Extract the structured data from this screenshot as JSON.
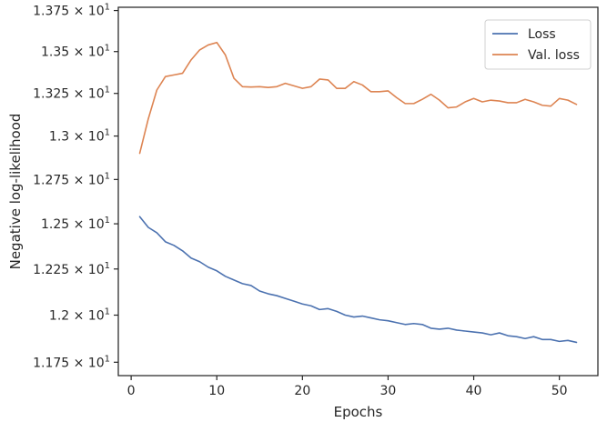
{
  "chart_data": {
    "type": "line",
    "title": "",
    "xlabel": "Epochs",
    "ylabel": "Negative log-likelihood",
    "yscale": "log",
    "xlim": [
      -1.5,
      54.5
    ],
    "ylim": [
      11.68,
      13.77
    ],
    "grid": false,
    "legend_position": "top-right",
    "x_ticks": [
      {
        "value": 0,
        "label": "0"
      },
      {
        "value": 10,
        "label": "10"
      },
      {
        "value": 20,
        "label": "20"
      },
      {
        "value": 30,
        "label": "30"
      },
      {
        "value": 40,
        "label": "40"
      },
      {
        "value": 50,
        "label": "50"
      }
    ],
    "y_ticks": [
      {
        "value": 11.75,
        "mantissa": "1.175"
      },
      {
        "value": 12.0,
        "mantissa": "1.2"
      },
      {
        "value": 12.25,
        "mantissa": "1.225"
      },
      {
        "value": 12.5,
        "mantissa": "1.25"
      },
      {
        "value": 12.75,
        "mantissa": "1.275"
      },
      {
        "value": 13.0,
        "mantissa": "1.3"
      },
      {
        "value": 13.25,
        "mantissa": "1.325"
      },
      {
        "value": 13.5,
        "mantissa": "1.35"
      },
      {
        "value": 13.75,
        "mantissa": "1.375"
      }
    ],
    "y_tick_multiplier": "× 10",
    "y_tick_exponent": "1",
    "x": [
      1,
      2,
      3,
      4,
      5,
      6,
      7,
      8,
      9,
      10,
      11,
      12,
      13,
      14,
      15,
      16,
      17,
      18,
      19,
      20,
      21,
      22,
      23,
      24,
      25,
      26,
      27,
      28,
      29,
      30,
      31,
      32,
      33,
      34,
      35,
      36,
      37,
      38,
      39,
      40,
      41,
      42,
      43,
      44,
      45,
      46,
      47,
      48,
      49,
      50,
      51,
      52
    ],
    "series": [
      {
        "name": "Loss",
        "color": "#4c72b0",
        "values": [
          12.54,
          12.48,
          12.45,
          12.4,
          12.38,
          12.35,
          12.31,
          12.29,
          12.26,
          12.24,
          12.21,
          12.19,
          12.17,
          12.16,
          12.13,
          12.115,
          12.105,
          12.09,
          12.075,
          12.06,
          12.05,
          12.03,
          12.035,
          12.02,
          12.0,
          11.99,
          11.995,
          11.985,
          11.975,
          11.97,
          11.96,
          11.95,
          11.955,
          11.95,
          11.93,
          11.925,
          11.93,
          11.92,
          11.915,
          11.91,
          11.905,
          11.895,
          11.905,
          11.89,
          11.885,
          11.875,
          11.885,
          11.87,
          11.87,
          11.86,
          11.865,
          11.855
        ]
      },
      {
        "name": "Val. loss",
        "color": "#dd8452",
        "values": [
          12.9,
          13.1,
          13.27,
          13.35,
          13.36,
          13.37,
          13.45,
          13.51,
          13.54,
          13.555,
          13.48,
          13.34,
          13.29,
          13.288,
          13.29,
          13.285,
          13.29,
          13.31,
          13.295,
          13.28,
          13.29,
          13.335,
          13.33,
          13.28,
          13.28,
          13.32,
          13.3,
          13.26,
          13.26,
          13.265,
          13.225,
          13.19,
          13.19,
          13.215,
          13.245,
          13.21,
          13.165,
          13.17,
          13.2,
          13.22,
          13.2,
          13.21,
          13.205,
          13.195,
          13.195,
          13.215,
          13.2,
          13.18,
          13.175,
          13.22,
          13.21,
          13.185
        ]
      }
    ]
  }
}
